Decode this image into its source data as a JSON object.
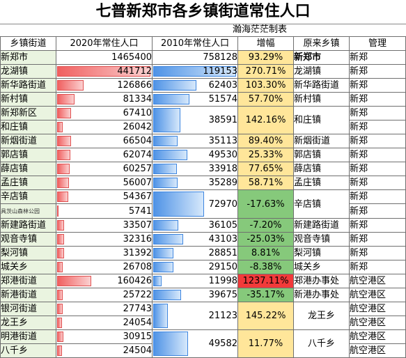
{
  "title": "七普新郑市各乡镇街道常住人口",
  "subtitle": "瀚海茫茫制表",
  "headers": [
    "乡镇街道",
    "2020年常住人口",
    "2010年常住人口",
    "增幅",
    "原来乡镇",
    "管理"
  ],
  "colors": {
    "yellow": "#ffe69a",
    "green": "#86c97b",
    "red": "#f23a3a",
    "name_bg": "#eaf4e0"
  },
  "max_pop": 1465400,
  "rows": [
    {
      "name": "新郑市",
      "p2020": 1465400,
      "p2020_text": "1465400",
      "p2010": 758128,
      "p2010_text": "758128",
      "growth": "93.29%",
      "growth_color": "yellow",
      "orig": "新郑市",
      "orig_bold": true,
      "mgr": "新郑",
      "bars": false
    },
    {
      "name": "龙湖镇",
      "p2020": 441712,
      "p2020_text": "441712",
      "p2010": 119153,
      "p2010_text": "119153",
      "growth": "270.71%",
      "growth_color": "yellow",
      "orig": "龙湖镇",
      "mgr": "新郑",
      "bars": true
    },
    {
      "name": "新华路街道",
      "p2020": 126866,
      "p2020_text": "126866",
      "p2010": 62403,
      "p2010_text": "62403",
      "growth": "103.30%",
      "growth_color": "yellow",
      "orig": "新华路街道",
      "mgr": "新郑",
      "bars": true
    },
    {
      "name": "新村镇",
      "p2020": 81334,
      "p2020_text": "81334",
      "p2010": 51574,
      "p2010_text": "51574",
      "growth": "57.70%",
      "growth_color": "yellow",
      "orig": "新村镇",
      "mgr": "新郑",
      "bars": true
    },
    {
      "name": "新郑新区",
      "p2020": 67410,
      "p2020_text": "67410",
      "merge_start": true,
      "p2010": 38591,
      "p2010_text": "38591",
      "growth": "142.16%",
      "growth_color": "yellow",
      "orig": "和庄镇",
      "mgr": "新郑",
      "bars": true
    },
    {
      "name": "和庄镇",
      "p2020": 26042,
      "p2020_text": "26042",
      "merge_cont": true,
      "mgr": "新郑",
      "bars": true
    },
    {
      "name": "新烟街道",
      "p2020": 66504,
      "p2020_text": "66504",
      "p2010": 35113,
      "p2010_text": "35113",
      "growth": "89.40%",
      "growth_color": "yellow",
      "orig": "新烟街道",
      "mgr": "新郑",
      "bars": true
    },
    {
      "name": "郭店镇",
      "p2020": 62074,
      "p2020_text": "62074",
      "p2010": 49530,
      "p2010_text": "49530",
      "growth": "25.33%",
      "growth_color": "yellow",
      "orig": "郭店镇",
      "mgr": "新郑",
      "bars": true
    },
    {
      "name": "薛店镇",
      "p2020": 60257,
      "p2020_text": "60257",
      "p2010": 33918,
      "p2010_text": "33918",
      "growth": "77.65%",
      "growth_color": "yellow",
      "orig": "薛店镇",
      "mgr": "新郑",
      "bars": true
    },
    {
      "name": "孟庄镇",
      "p2020": 56007,
      "p2020_text": "56007",
      "p2010": 35289,
      "p2010_text": "35289",
      "growth": "58.71%",
      "growth_color": "yellow",
      "orig": "孟庄镇",
      "mgr": "新郑",
      "bars": true
    },
    {
      "name": "辛店镇",
      "p2020": 54367,
      "p2020_text": "54367",
      "merge_start": true,
      "p2010": 72970,
      "p2010_text": "72970",
      "growth": "-17.63%",
      "growth_color": "green",
      "orig": "辛店镇",
      "mgr": "新郑",
      "bars": true
    },
    {
      "name": "具茨山森林公园",
      "name_small": true,
      "p2020": 5741,
      "p2020_text": "5741",
      "merge_cont": true,
      "mgr": "新郑",
      "bars": true
    },
    {
      "name": "新建路街道",
      "p2020": 33507,
      "p2020_text": "33507",
      "p2010": 36105,
      "p2010_text": "36105",
      "growth": "-7.20%",
      "growth_color": "green",
      "orig": "新建路街道",
      "mgr": "新郑",
      "bars": true
    },
    {
      "name": "观音寺镇",
      "p2020": 32316,
      "p2020_text": "32316",
      "p2010": 43103,
      "p2010_text": "43103",
      "growth": "-25.03%",
      "growth_color": "green",
      "orig": "观音寺镇",
      "mgr": "新郑",
      "bars": true
    },
    {
      "name": "梨河镇",
      "p2020": 31392,
      "p2020_text": "31392",
      "p2010": 28851,
      "p2010_text": "28851",
      "growth": "8.81%",
      "growth_color": "green",
      "orig": "梨河镇",
      "mgr": "新郑",
      "bars": true
    },
    {
      "name": "城关乡",
      "p2020": 26708,
      "p2020_text": "26708",
      "p2010": 29150,
      "p2010_text": "29150",
      "growth": "-8.38%",
      "growth_color": "green",
      "orig": "城关乡",
      "mgr": "新郑",
      "bars": true
    },
    {
      "name": "郑港街道",
      "p2020": 160426,
      "p2020_text": "160426",
      "p2010": 11998,
      "p2010_text": "11998",
      "growth": "1237.11%",
      "growth_color": "red",
      "orig": "郑港办事处",
      "mgr": "航空港区",
      "bars": true
    },
    {
      "name": "新港街道",
      "p2020": 25722,
      "p2020_text": "25722",
      "p2010": 39675,
      "p2010_text": "39675",
      "growth": "-35.17%",
      "growth_color": "green",
      "orig": "新港办事处",
      "mgr": "航空港区",
      "bars": true
    },
    {
      "name": "银河街道",
      "p2020": 27743,
      "p2020_text": "27743",
      "merge_start": true,
      "p2010": 21123,
      "p2010_text": "21123",
      "growth": "145.22%",
      "growth_color": "yellow",
      "orig": "龙王乡",
      "orig_center": true,
      "mgr": "航空港区",
      "bars": true
    },
    {
      "name": "龙王乡",
      "p2020": 24054,
      "p2020_text": "24054",
      "merge_cont": true,
      "mgr": "航空港区",
      "bars": true
    },
    {
      "name": "明港街道",
      "p2020": 30915,
      "p2020_text": "30915",
      "merge_start": true,
      "p2010": 49582,
      "p2010_text": "49582",
      "growth": "11.77%",
      "growth_color": "yellow",
      "orig": "八千乡",
      "orig_center": true,
      "mgr": "航空港区",
      "bars": true
    },
    {
      "name": "八千乡",
      "p2020": 24504,
      "p2020_text": "24504",
      "merge_cont": true,
      "mgr": "航空港区",
      "bars": true
    }
  ]
}
